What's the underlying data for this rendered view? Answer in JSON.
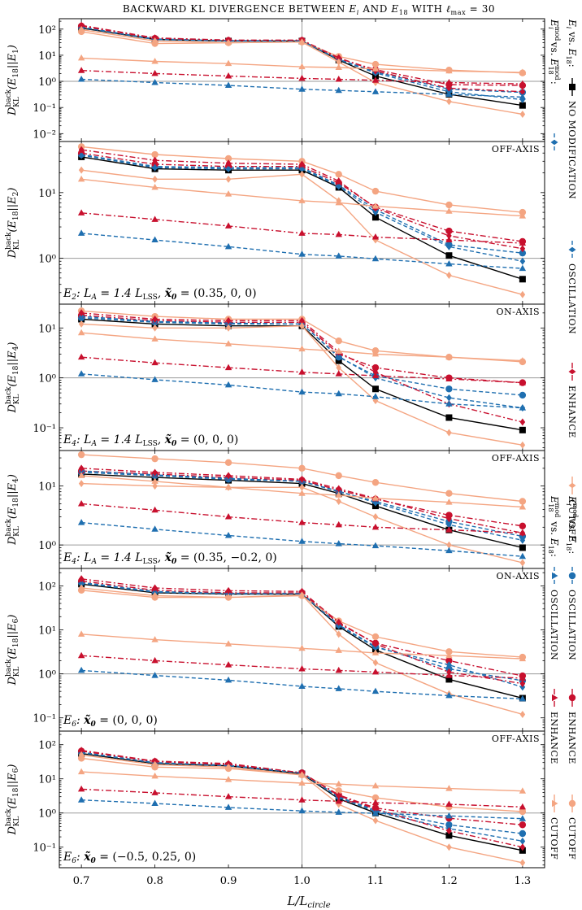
{
  "title": "BACKWARD KL DIVERGENCE BETWEEN E_i AND E_18 WITH ℓ_max = 30",
  "xlabel": "L/L_circle",
  "x_ticks": [
    "0.7",
    "0.8",
    "0.9",
    "1.0",
    "1.1",
    "1.2",
    "1.3"
  ],
  "legend": {
    "group1_header": "E_i vs. E_18:",
    "group2_header": "E_i^mod vs. E_18^mod:",
    "group3_header": "E_i^mod vs. E_18:",
    "group4_header": "E_18^mod vs. E_18:",
    "labels": [
      "NO MODIFICATION",
      "OSCILLATION",
      "ENHANCE",
      "CUTOFF"
    ]
  },
  "colors": {
    "none": "#000000",
    "oscillation": "#1f6fb0",
    "enhance": "#c8102e",
    "cutoff": "#f4a582",
    "reference": "#9a9a9a"
  },
  "chart_data": [
    {
      "type": "line",
      "ylabel": "D_KL^back(E_18||E_1)",
      "tag": "",
      "annotation": "",
      "yscale": "log",
      "ylim": [
        0.005,
        250
      ],
      "yticks": [
        "10^-2",
        "10^-1",
        "10^0",
        "10^1",
        "10^2"
      ],
      "x": [
        0.7,
        0.8,
        0.9,
        1.0,
        1.05,
        1.1,
        1.2,
        1.3
      ],
      "series": [
        {
          "name": "Ei vs E18: no modification",
          "values": [
            110,
            40,
            35,
            35,
            6.5,
            1.6,
            0.32,
            0.12
          ]
        },
        {
          "name": "Ei vs E18: oscillation",
          "values": [
            120,
            42,
            36,
            36,
            7.0,
            2.3,
            0.5,
            0.38
          ]
        },
        {
          "name": "Ei vs E18: enhance",
          "values": [
            130,
            44,
            37,
            37,
            7.5,
            2.8,
            0.75,
            0.7
          ]
        },
        {
          "name": "Ei vs E18: cutoff",
          "values": [
            80,
            28,
            30,
            32,
            9.0,
            4.5,
            2.7,
            2.1
          ]
        },
        {
          "name": "Eimod vs E18mod: oscillation",
          "values": [
            115,
            40,
            35,
            35,
            6.8,
            2.1,
            0.4,
            0.2
          ]
        },
        {
          "name": "Eimod vs E18mod: enhance",
          "values": [
            140,
            46,
            38,
            38,
            8.0,
            2.5,
            0.55,
            0.4
          ]
        },
        {
          "name": "Eimod vs E18mod: cutoff",
          "values": [
            95,
            35,
            30,
            32,
            5.5,
            0.9,
            0.17,
            0.055
          ]
        },
        {
          "name": "E18mod vs E18: oscillation",
          "values": [
            1.2,
            0.9,
            0.7,
            0.5,
            0.45,
            0.4,
            0.32,
            0.25
          ]
        },
        {
          "name": "E18mod vs E18: enhance",
          "values": [
            2.6,
            2.0,
            1.6,
            1.3,
            1.2,
            1.1,
            0.9,
            0.8
          ]
        },
        {
          "name": "E18mod vs E18: cutoff",
          "values": [
            7.8,
            5.8,
            4.8,
            3.6,
            3.4,
            3.0,
            2.5,
            2.2
          ]
        }
      ]
    },
    {
      "type": "line",
      "ylabel": "D_KL^back(E_18||E_2)",
      "tag": "OFF-AXIS",
      "annotation": "E2: LA = 1.4 LLSS, x0 = (0.35, 0, 0)",
      "yscale": "log",
      "ylim": [
        0.2,
        60
      ],
      "yticks": [
        "10^0",
        "10^1"
      ],
      "x": [
        0.7,
        0.8,
        0.9,
        1.0,
        1.05,
        1.1,
        1.2,
        1.3
      ],
      "series": [
        {
          "name": "Ei vs E18: no modification",
          "values": [
            35,
            23,
            22,
            22,
            12,
            4.2,
            1.1,
            0.48
          ]
        },
        {
          "name": "Ei vs E18: oscillation",
          "values": [
            38,
            25,
            24,
            24,
            13,
            5.5,
            1.6,
            1.2
          ]
        },
        {
          "name": "Ei vs E18: enhance",
          "values": [
            40,
            27,
            25,
            25,
            14,
            6.0,
            2.6,
            1.8
          ]
        },
        {
          "name": "Ei vs E18: cutoff",
          "values": [
            50,
            38,
            33,
            30,
            19,
            10.5,
            6.5,
            5.0
          ]
        },
        {
          "name": "Eimod vs E18mod: oscillation",
          "values": [
            37,
            24,
            23,
            23,
            12.5,
            5.0,
            1.5,
            0.9
          ]
        },
        {
          "name": "Eimod vs E18mod: enhance",
          "values": [
            45,
            31,
            28,
            27,
            15,
            5.8,
            2.2,
            1.4
          ]
        },
        {
          "name": "Eimod vs E18mod: cutoff",
          "values": [
            22,
            16,
            16,
            19,
            7.5,
            1.9,
            0.55,
            0.28
          ]
        },
        {
          "name": "E18mod vs E18: oscillation",
          "values": [
            2.4,
            1.9,
            1.5,
            1.15,
            1.08,
            0.98,
            0.82,
            0.7
          ]
        },
        {
          "name": "E18mod vs E18: enhance",
          "values": [
            4.9,
            3.9,
            3.1,
            2.4,
            2.3,
            2.1,
            1.9,
            1.7
          ]
        },
        {
          "name": "E18mod vs E18: cutoff",
          "values": [
            16,
            12,
            9.5,
            7.5,
            7.0,
            6.2,
            5.2,
            4.4
          ]
        }
      ]
    },
    {
      "type": "line",
      "ylabel": "D_KL^back(E_18||E_4)",
      "tag": "ON-AXIS",
      "annotation": "E4: LA = 1.4 LLSS, x0 = (0, 0, 0)",
      "yscale": "log",
      "ylim": [
        0.035,
        30
      ],
      "yticks": [
        "10^-1",
        "10^0",
        "10^1"
      ],
      "x": [
        0.7,
        0.8,
        0.9,
        1.0,
        1.05,
        1.1,
        1.2,
        1.3
      ],
      "series": [
        {
          "name": "Ei vs E18: no modification",
          "values": [
            15,
            12,
            11,
            11,
            2.2,
            0.6,
            0.16,
            0.09
          ]
        },
        {
          "name": "Ei vs E18: oscillation",
          "values": [
            16,
            13,
            12,
            12,
            2.6,
            1.1,
            0.6,
            0.45
          ]
        },
        {
          "name": "Ei vs E18: enhance",
          "values": [
            18,
            14,
            13,
            13,
            3.0,
            1.6,
            1.0,
            0.8
          ]
        },
        {
          "name": "Ei vs E18: cutoff",
          "values": [
            22,
            17,
            15,
            15,
            5.5,
            3.5,
            2.6,
            2.1
          ]
        },
        {
          "name": "Eimod vs E18mod: oscillation",
          "values": [
            17,
            13.5,
            12.5,
            12,
            2.7,
            1.0,
            0.4,
            0.25
          ]
        },
        {
          "name": "Eimod vs E18mod: enhance",
          "values": [
            20,
            15,
            14,
            14,
            3.3,
            1.3,
            0.3,
            0.13
          ]
        },
        {
          "name": "Eimod vs E18mod: cutoff",
          "values": [
            12,
            10,
            10,
            11,
            1.6,
            0.35,
            0.08,
            0.045
          ]
        },
        {
          "name": "E18mod vs E18: oscillation",
          "values": [
            1.2,
            0.92,
            0.72,
            0.52,
            0.48,
            0.42,
            0.3,
            0.25
          ]
        },
        {
          "name": "E18mod vs E18: enhance",
          "values": [
            2.6,
            2.0,
            1.6,
            1.3,
            1.2,
            1.1,
            0.95,
            0.8
          ]
        },
        {
          "name": "E18mod vs E18: cutoff",
          "values": [
            8.0,
            6.0,
            4.8,
            3.8,
            3.4,
            3.0,
            2.6,
            2.2
          ]
        }
      ]
    },
    {
      "type": "line",
      "ylabel": "D_KL^back(E_18||E_4)",
      "tag": "OFF-AXIS",
      "annotation": "E4: LA = 1.4 LLSS, x0 = (0.35, −0.2, 0)",
      "yscale": "log",
      "ylim": [
        0.4,
        40
      ],
      "yticks": [
        "10^0",
        "10^1"
      ],
      "x": [
        0.7,
        0.8,
        0.9,
        1.0,
        1.05,
        1.1,
        1.2,
        1.3
      ],
      "series": [
        {
          "name": "Ei vs E18: no modification",
          "values": [
            16,
            14,
            12.5,
            11,
            7.5,
            4.6,
            1.8,
            0.9
          ]
        },
        {
          "name": "Ei vs E18: oscillation",
          "values": [
            17,
            15,
            13,
            12,
            8.0,
            5.5,
            2.5,
            1.4
          ]
        },
        {
          "name": "Ei vs E18: enhance",
          "values": [
            18,
            16,
            14,
            12.5,
            8.5,
            6.0,
            3.2,
            2.1
          ]
        },
        {
          "name": "Ei vs E18: cutoff",
          "values": [
            34,
            29,
            25,
            20,
            15,
            11.5,
            7.5,
            5.5
          ]
        },
        {
          "name": "Eimod vs E18mod: oscillation",
          "values": [
            18,
            15.5,
            13.5,
            12,
            8.2,
            5.2,
            2.2,
            1.2
          ]
        },
        {
          "name": "Eimod vs E18mod: enhance",
          "values": [
            20,
            17,
            15,
            13,
            9.0,
            6.2,
            2.8,
            1.6
          ]
        },
        {
          "name": "Eimod vs E18mod: cutoff",
          "values": [
            11,
            10,
            9.5,
            9.5,
            5.5,
            3.0,
            1.0,
            0.5
          ]
        },
        {
          "name": "E18mod vs E18: oscillation",
          "values": [
            2.4,
            1.85,
            1.45,
            1.15,
            1.05,
            0.97,
            0.8,
            0.64
          ]
        },
        {
          "name": "E18mod vs E18: enhance",
          "values": [
            5.0,
            3.9,
            3.0,
            2.4,
            2.2,
            2.0,
            1.8,
            1.6
          ]
        },
        {
          "name": "E18mod vs E18: cutoff",
          "values": [
            15,
            12,
            9.5,
            7.5,
            7.0,
            6.2,
            5.3,
            4.4
          ]
        }
      ]
    },
    {
      "type": "line",
      "ylabel": "D_KL^back(E_18||E_6)",
      "tag": "ON-AXIS",
      "annotation": "E6: x0 = (0, 0, 0)",
      "yscale": "log",
      "ylim": [
        0.05,
        250
      ],
      "yticks": [
        "10^-1",
        "10^0",
        "10^1",
        "10^2"
      ],
      "x": [
        0.7,
        0.8,
        0.9,
        1.0,
        1.05,
        1.1,
        1.2,
        1.3
      ],
      "series": [
        {
          "name": "Ei vs E18: no modification",
          "values": [
            110,
            70,
            65,
            65,
            12,
            3.5,
            0.75,
            0.28
          ]
        },
        {
          "name": "Ei vs E18: oscillation",
          "values": [
            120,
            75,
            68,
            68,
            13,
            4.2,
            1.3,
            0.7
          ]
        },
        {
          "name": "Ei vs E18: enhance",
          "values": [
            130,
            80,
            70,
            70,
            14,
            5.0,
            2.0,
            0.9
          ]
        },
        {
          "name": "Ei vs E18: cutoff",
          "values": [
            80,
            55,
            55,
            60,
            16,
            7.0,
            3.2,
            2.4
          ]
        },
        {
          "name": "Eimod vs E18mod: oscillation",
          "values": [
            115,
            72,
            66,
            66,
            12.5,
            4.0,
            1.6,
            0.5
          ]
        },
        {
          "name": "Eimod vs E18mod: enhance",
          "values": [
            145,
            90,
            78,
            75,
            15,
            4.8,
            1.1,
            0.6
          ]
        },
        {
          "name": "Eimod vs E18mod: cutoff",
          "values": [
            90,
            60,
            55,
            62,
            8.0,
            1.8,
            0.35,
            0.12
          ]
        },
        {
          "name": "E18mod vs E18: oscillation",
          "values": [
            1.2,
            0.92,
            0.72,
            0.52,
            0.46,
            0.4,
            0.32,
            0.27
          ]
        },
        {
          "name": "E18mod vs E18: enhance",
          "values": [
            2.6,
            2.0,
            1.6,
            1.3,
            1.2,
            1.1,
            0.92,
            0.8
          ]
        },
        {
          "name": "E18mod vs E18: cutoff",
          "values": [
            8.0,
            6.0,
            4.8,
            3.8,
            3.4,
            3.0,
            2.6,
            2.2
          ]
        }
      ]
    },
    {
      "type": "line",
      "ylabel": "D_KL^back(E_18||E_6)",
      "tag": "OFF-AXIS",
      "annotation": "E6: x0 = (−0.5, 0.25, 0)",
      "yscale": "log",
      "ylim": [
        0.025,
        250
      ],
      "yticks": [
        "10^-1",
        "10^0",
        "10^1",
        "10^2"
      ],
      "x": [
        0.7,
        0.8,
        0.9,
        1.0,
        1.05,
        1.1,
        1.2,
        1.3
      ],
      "series": [
        {
          "name": "Ei vs E18: no modification",
          "values": [
            55,
            28,
            24,
            14,
            2.6,
            1.0,
            0.22,
            0.08
          ]
        },
        {
          "name": "Ei vs E18: oscillation",
          "values": [
            60,
            30,
            25,
            15,
            3.0,
            1.2,
            0.45,
            0.25
          ]
        },
        {
          "name": "Ei vs E18: enhance",
          "values": [
            65,
            32,
            26,
            15,
            3.4,
            1.4,
            0.7,
            0.45
          ]
        },
        {
          "name": "Ei vs E18: cutoff",
          "values": [
            40,
            22,
            20,
            13,
            4.5,
            2.8,
            1.5,
            1.1
          ]
        },
        {
          "name": "Eimod vs E18mod: oscillation",
          "values": [
            58,
            29,
            24,
            14.5,
            2.8,
            1.1,
            0.35,
            0.15
          ]
        },
        {
          "name": "Eimod vs E18mod: enhance",
          "values": [
            68,
            33,
            28,
            15,
            3.2,
            1.3,
            0.3,
            0.1
          ]
        },
        {
          "name": "Eimod vs E18mod: cutoff",
          "values": [
            50,
            26,
            22,
            13,
            1.8,
            0.6,
            0.1,
            0.035
          ]
        },
        {
          "name": "E18mod vs E18: oscillation",
          "values": [
            2.4,
            1.9,
            1.45,
            1.15,
            1.05,
            0.98,
            0.82,
            0.68
          ]
        },
        {
          "name": "E18mod vs E18: enhance",
          "values": [
            5.0,
            3.9,
            3.0,
            2.4,
            2.2,
            2.0,
            1.8,
            1.5
          ]
        },
        {
          "name": "E18mod vs E18: cutoff",
          "values": [
            16,
            12,
            9.5,
            7.5,
            7.0,
            6.2,
            5.2,
            4.4
          ]
        }
      ]
    }
  ]
}
